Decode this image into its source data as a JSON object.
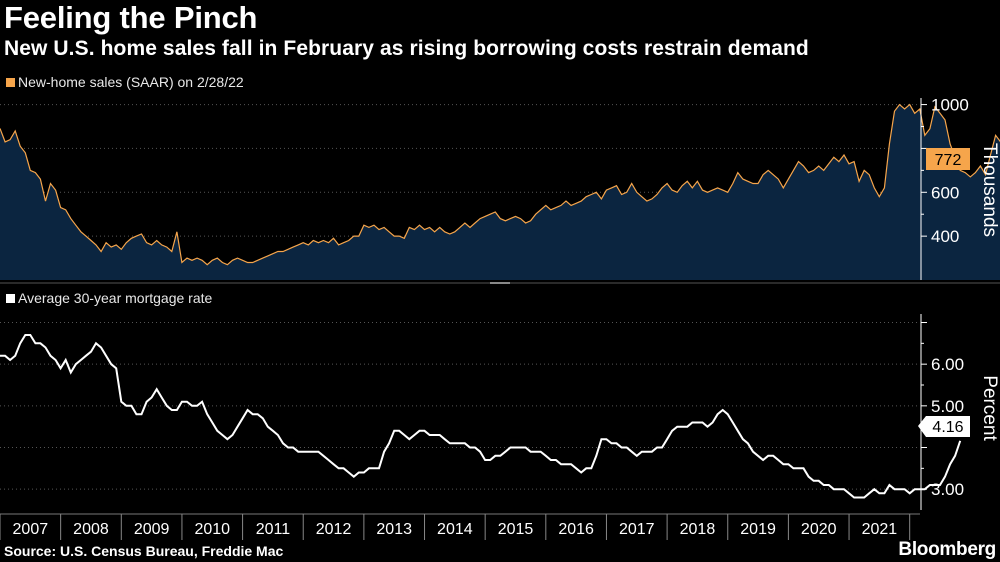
{
  "header": {
    "title": "Feeling the Pinch",
    "subtitle": "New U.S. home sales fall in February as rising borrowing costs restrain demand"
  },
  "colors": {
    "sales": "#f6a54b",
    "sales_fill": "#0b2540",
    "mortgage": "#ffffff",
    "background": "#000000",
    "projection": "#e8325a"
  },
  "footer": {
    "source": "Source: U.S. Census Bureau, Freddie Mac",
    "brand": "Bloomberg"
  },
  "chart_data": [
    {
      "type": "area",
      "legend": "New-home sales (SAAR) on 2/28/22",
      "ylabel": "Thousands",
      "ylim": [
        200,
        1030
      ],
      "yticks": [
        400,
        600,
        800,
        1000
      ],
      "last_value_label": "772",
      "x_start": 2007.0,
      "x_step": 0.08333,
      "values": [
        891,
        830,
        840,
        880,
        810,
        780,
        700,
        690,
        660,
        560,
        640,
        610,
        530,
        520,
        480,
        450,
        420,
        400,
        380,
        360,
        330,
        370,
        350,
        360,
        340,
        370,
        390,
        400,
        410,
        370,
        360,
        380,
        360,
        350,
        330,
        420,
        280,
        300,
        290,
        300,
        290,
        270,
        290,
        300,
        280,
        270,
        290,
        300,
        290,
        280,
        280,
        290,
        300,
        310,
        320,
        330,
        330,
        340,
        350,
        360,
        370,
        360,
        380,
        370,
        380,
        370,
        390,
        360,
        370,
        380,
        400,
        400,
        450,
        440,
        450,
        430,
        440,
        420,
        400,
        400,
        390,
        440,
        430,
        450,
        430,
        440,
        420,
        440,
        420,
        410,
        420,
        440,
        460,
        440,
        460,
        480,
        490,
        500,
        510,
        480,
        470,
        480,
        490,
        480,
        460,
        470,
        500,
        520,
        540,
        520,
        530,
        540,
        560,
        540,
        550,
        560,
        580,
        590,
        600,
        570,
        610,
        620,
        630,
        590,
        600,
        640,
        600,
        580,
        560,
        570,
        590,
        620,
        640,
        610,
        600,
        630,
        650,
        620,
        650,
        610,
        600,
        610,
        620,
        610,
        600,
        640,
        690,
        660,
        650,
        640,
        640,
        680,
        700,
        680,
        660,
        620,
        660,
        700,
        740,
        720,
        690,
        700,
        720,
        700,
        730,
        760,
        740,
        770,
        730,
        740,
        650,
        700,
        680,
        620,
        580,
        620,
        820,
        970,
        1000,
        980,
        1000,
        960,
        980,
        860,
        890,
        990,
        960,
        930,
        820,
        760,
        700,
        690,
        670,
        690,
        720,
        680,
        770,
        860,
        830,
        790,
        772
      ]
    },
    {
      "type": "line",
      "legend": "Average 30-year mortgage rate",
      "ylabel": "Percent",
      "ylim": [
        2.5,
        7.3
      ],
      "yticks": [
        3.0,
        5.0,
        6.0
      ],
      "yticks_minor": [
        4.0,
        7.0
      ],
      "ytick_labels": [
        "3.00",
        "5.00",
        "6.00"
      ],
      "last_value_label": "4.16",
      "x_start": 2007.0,
      "x_step": 0.08333,
      "values": [
        6.2,
        6.2,
        6.1,
        6.2,
        6.5,
        6.7,
        6.7,
        6.5,
        6.5,
        6.4,
        6.2,
        6.1,
        5.9,
        6.1,
        5.8,
        6.0,
        6.1,
        6.2,
        6.3,
        6.5,
        6.4,
        6.2,
        6.0,
        5.9,
        5.1,
        5.0,
        5.0,
        4.8,
        4.8,
        5.1,
        5.2,
        5.4,
        5.2,
        5.0,
        4.9,
        4.9,
        5.1,
        5.1,
        5.0,
        5.0,
        5.1,
        4.8,
        4.6,
        4.4,
        4.3,
        4.2,
        4.3,
        4.5,
        4.7,
        4.9,
        4.8,
        4.8,
        4.7,
        4.5,
        4.4,
        4.3,
        4.1,
        4.0,
        4.0,
        3.9,
        3.9,
        3.9,
        3.9,
        3.9,
        3.8,
        3.7,
        3.6,
        3.5,
        3.5,
        3.4,
        3.3,
        3.4,
        3.4,
        3.5,
        3.5,
        3.5,
        3.9,
        4.1,
        4.4,
        4.4,
        4.3,
        4.2,
        4.3,
        4.4,
        4.4,
        4.3,
        4.3,
        4.3,
        4.2,
        4.1,
        4.1,
        4.1,
        4.1,
        4.0,
        4.0,
        3.9,
        3.7,
        3.7,
        3.8,
        3.8,
        3.9,
        4.0,
        4.0,
        4.0,
        4.0,
        3.9,
        3.9,
        3.9,
        3.8,
        3.7,
        3.7,
        3.6,
        3.6,
        3.6,
        3.5,
        3.4,
        3.5,
        3.5,
        3.8,
        4.2,
        4.2,
        4.1,
        4.1,
        4.0,
        4.0,
        3.9,
        3.8,
        3.9,
        3.9,
        3.9,
        4.0,
        4.0,
        4.2,
        4.4,
        4.5,
        4.5,
        4.5,
        4.6,
        4.6,
        4.6,
        4.5,
        4.6,
        4.8,
        4.9,
        4.8,
        4.6,
        4.4,
        4.2,
        4.1,
        3.9,
        3.8,
        3.7,
        3.8,
        3.8,
        3.7,
        3.6,
        3.6,
        3.5,
        3.5,
        3.5,
        3.3,
        3.2,
        3.2,
        3.1,
        3.1,
        3.0,
        3.0,
        3.0,
        2.9,
        2.8,
        2.8,
        2.8,
        2.9,
        3.0,
        2.9,
        2.9,
        3.1,
        3.0,
        3.0,
        3.0,
        2.9,
        3.0,
        3.0,
        3.0,
        3.1,
        3.1,
        3.1,
        3.3,
        3.6,
        3.8,
        4.16
      ]
    }
  ],
  "x_axis": {
    "years": [
      "2007",
      "2008",
      "2009",
      "2010",
      "2011",
      "2012",
      "2013",
      "2014",
      "2015",
      "2016",
      "2017",
      "2018",
      "2019",
      "2020",
      "2021"
    ]
  }
}
